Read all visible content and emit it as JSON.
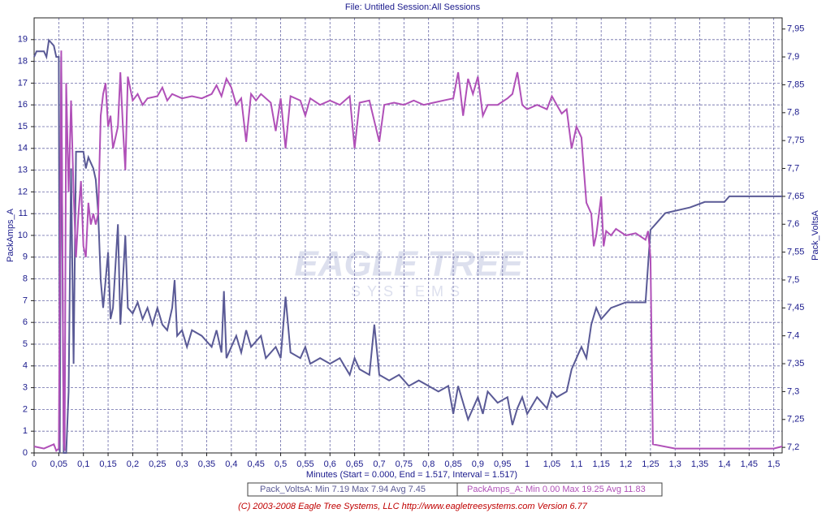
{
  "chart_data": {
    "type": "line",
    "header": "File: Untitled   Session:All Sessions",
    "xlabel": "Minutes (Start = 0.000,  End = 1.517,  Interval = 1.517)",
    "ylabel": "PackAmps_A",
    "y2label": "Pack_VoltsA",
    "footer": "(C) 2003-2008 Eagle Tree Systems, LLC     http://www.eagletreesystems.com     Version 6.77",
    "watermark": [
      "EAGLE TREE",
      "SYSTEMS"
    ],
    "grid": true,
    "xlim": [
      0,
      1.517
    ],
    "ylim": [
      0,
      20
    ],
    "y2lim": [
      7.19,
      7.97
    ],
    "xticks": [
      0,
      {
        "value": 0.05,
        "label": "0,05"
      },
      {
        "value": 0.1,
        "label": "0,1"
      },
      {
        "value": 0.15,
        "label": "0,15"
      },
      {
        "value": 0.2,
        "label": "0,2"
      },
      {
        "value": 0.25,
        "label": "0,25"
      },
      {
        "value": 0.3,
        "label": "0,3"
      },
      {
        "value": 0.35,
        "label": "0,35"
      },
      {
        "value": 0.4,
        "label": "0,4"
      },
      {
        "value": 0.45,
        "label": "0,45"
      },
      {
        "value": 0.5,
        "label": "0,5"
      },
      {
        "value": 0.55,
        "label": "0,55"
      },
      {
        "value": 0.6,
        "label": "0,6"
      },
      {
        "value": 0.65,
        "label": "0,65"
      },
      {
        "value": 0.7,
        "label": "0,7"
      },
      {
        "value": 0.75,
        "label": "0,75"
      },
      {
        "value": 0.8,
        "label": "0,8"
      },
      {
        "value": 0.85,
        "label": "0,85"
      },
      {
        "value": 0.9,
        "label": "0,9"
      },
      {
        "value": 0.95,
        "label": "0,95"
      },
      1,
      {
        "value": 1.05,
        "label": "1,05"
      },
      {
        "value": 1.1,
        "label": "1,1"
      },
      {
        "value": 1.15,
        "label": "1,15"
      },
      {
        "value": 1.2,
        "label": "1,2"
      },
      {
        "value": 1.25,
        "label": "1,25"
      },
      {
        "value": 1.3,
        "label": "1,3"
      },
      {
        "value": 1.35,
        "label": "1,35"
      },
      {
        "value": 1.4,
        "label": "1,4"
      },
      {
        "value": 1.45,
        "label": "1,45"
      },
      {
        "value": 1.5,
        "label": "1,5"
      }
    ],
    "yticks": [
      0,
      1,
      2,
      3,
      4,
      5,
      6,
      7,
      8,
      9,
      10,
      11,
      12,
      13,
      14,
      15,
      16,
      17,
      18,
      19
    ],
    "y2ticks": [
      {
        "value": 7.2,
        "label": "7,2"
      },
      {
        "value": 7.25,
        "label": "7,25"
      },
      {
        "value": 7.3,
        "label": "7,3"
      },
      {
        "value": 7.35,
        "label": "7,35"
      },
      {
        "value": 7.4,
        "label": "7,4"
      },
      {
        "value": 7.45,
        "label": "7,45"
      },
      {
        "value": 7.5,
        "label": "7,5"
      },
      {
        "value": 7.55,
        "label": "7,55"
      },
      {
        "value": 7.6,
        "label": "7,6"
      },
      {
        "value": 7.65,
        "label": "7,65"
      },
      {
        "value": 7.7,
        "label": "7,7"
      },
      {
        "value": 7.75,
        "label": "7,75"
      },
      {
        "value": 7.8,
        "label": "7,8"
      },
      {
        "value": 7.85,
        "label": "7,85"
      },
      {
        "value": 7.9,
        "label": "7,9"
      },
      {
        "value": 7.95,
        "label": "7,95"
      }
    ],
    "series": [
      {
        "name": "Pack_VoltsA",
        "legend_text": "Pack_VoltsA:  Min 7.19   Max 7.94   Avg 7.45",
        "color": "#5a5a96",
        "axis": "y2",
        "x": [
          0,
          0.005,
          0.02,
          0.025,
          0.03,
          0.04,
          0.045,
          0.05,
          0.052,
          0.055,
          0.06,
          0.065,
          0.07,
          0.075,
          0.08,
          0.085,
          0.1,
          0.105,
          0.11,
          0.12,
          0.125,
          0.13,
          0.135,
          0.14,
          0.15,
          0.155,
          0.16,
          0.17,
          0.175,
          0.18,
          0.185,
          0.19,
          0.2,
          0.21,
          0.22,
          0.23,
          0.24,
          0.25,
          0.26,
          0.27,
          0.28,
          0.285,
          0.29,
          0.3,
          0.31,
          0.32,
          0.34,
          0.36,
          0.37,
          0.38,
          0.385,
          0.39,
          0.4,
          0.41,
          0.42,
          0.43,
          0.44,
          0.46,
          0.47,
          0.49,
          0.5,
          0.51,
          0.52,
          0.54,
          0.55,
          0.56,
          0.58,
          0.6,
          0.62,
          0.64,
          0.65,
          0.66,
          0.68,
          0.69,
          0.7,
          0.72,
          0.74,
          0.76,
          0.78,
          0.8,
          0.82,
          0.84,
          0.85,
          0.86,
          0.88,
          0.9,
          0.91,
          0.92,
          0.94,
          0.96,
          0.97,
          0.98,
          0.99,
          1.0,
          1.02,
          1.04,
          1.05,
          1.06,
          1.08,
          1.09,
          1.1,
          1.11,
          1.12,
          1.13,
          1.14,
          1.15,
          1.16,
          1.17,
          1.2,
          1.24,
          1.25,
          1.26,
          1.28,
          1.33,
          1.36,
          1.4,
          1.41,
          1.517
        ],
        "values": [
          7.9,
          7.91,
          7.91,
          7.9,
          7.93,
          7.92,
          7.9,
          7.9,
          7.19,
          7.9,
          7.19,
          7.19,
          7.3,
          7.7,
          7.35,
          7.73,
          7.73,
          7.7,
          7.72,
          7.7,
          7.68,
          7.62,
          7.5,
          7.45,
          7.55,
          7.43,
          7.45,
          7.6,
          7.42,
          7.5,
          7.58,
          7.45,
          7.44,
          7.46,
          7.43,
          7.45,
          7.42,
          7.45,
          7.42,
          7.41,
          7.45,
          7.5,
          7.4,
          7.41,
          7.38,
          7.41,
          7.4,
          7.38,
          7.41,
          7.37,
          7.48,
          7.36,
          7.38,
          7.4,
          7.37,
          7.41,
          7.38,
          7.4,
          7.36,
          7.38,
          7.36,
          7.47,
          7.37,
          7.36,
          7.38,
          7.35,
          7.36,
          7.35,
          7.36,
          7.33,
          7.36,
          7.34,
          7.33,
          7.42,
          7.33,
          7.32,
          7.33,
          7.31,
          7.32,
          7.31,
          7.3,
          7.31,
          7.26,
          7.31,
          7.25,
          7.29,
          7.26,
          7.3,
          7.28,
          7.29,
          7.24,
          7.27,
          7.29,
          7.26,
          7.29,
          7.27,
          7.3,
          7.29,
          7.3,
          7.34,
          7.36,
          7.38,
          7.36,
          7.42,
          7.45,
          7.43,
          7.44,
          7.45,
          7.46,
          7.46,
          7.59,
          7.6,
          7.62,
          7.63,
          7.64,
          7.64,
          7.65,
          7.65
        ]
      },
      {
        "name": "PackAmps_A",
        "legend_text": "PackAmps_A:  Min 0.00   Max 19.25   Avg 11.83",
        "color": "#b050b8",
        "axis": "y",
        "x": [
          0,
          0.02,
          0.04,
          0.045,
          0.05,
          0.055,
          0.06,
          0.062,
          0.065,
          0.07,
          0.075,
          0.08,
          0.085,
          0.09,
          0.095,
          0.1,
          0.105,
          0.11,
          0.115,
          0.12,
          0.125,
          0.13,
          0.135,
          0.14,
          0.145,
          0.15,
          0.155,
          0.16,
          0.165,
          0.17,
          0.175,
          0.18,
          0.185,
          0.19,
          0.2,
          0.21,
          0.22,
          0.23,
          0.25,
          0.26,
          0.27,
          0.28,
          0.3,
          0.32,
          0.34,
          0.36,
          0.37,
          0.38,
          0.39,
          0.4,
          0.41,
          0.42,
          0.43,
          0.44,
          0.45,
          0.46,
          0.48,
          0.49,
          0.5,
          0.51,
          0.52,
          0.54,
          0.55,
          0.56,
          0.58,
          0.6,
          0.62,
          0.64,
          0.65,
          0.66,
          0.68,
          0.7,
          0.71,
          0.73,
          0.75,
          0.77,
          0.79,
          0.81,
          0.83,
          0.85,
          0.86,
          0.87,
          0.88,
          0.89,
          0.9,
          0.91,
          0.92,
          0.94,
          0.96,
          0.97,
          0.98,
          0.99,
          1.0,
          1.02,
          1.04,
          1.05,
          1.06,
          1.07,
          1.08,
          1.09,
          1.1,
          1.11,
          1.115,
          1.12,
          1.13,
          1.135,
          1.14,
          1.15,
          1.155,
          1.16,
          1.17,
          1.18,
          1.2,
          1.22,
          1.24,
          1.245,
          1.25,
          1.255,
          1.3,
          1.4,
          1.5,
          1.517
        ],
        "values": [
          0.3,
          0.2,
          0.4,
          0.1,
          0.2,
          18.5,
          0.5,
          0.1,
          17,
          12,
          16.2,
          12,
          9,
          11,
          12.5,
          9.5,
          9,
          11.5,
          10.5,
          11,
          10.5,
          11,
          15.5,
          16.5,
          17,
          15,
          15.5,
          14,
          14.5,
          15,
          17.5,
          15,
          13,
          17.3,
          16.2,
          16.5,
          16,
          16.3,
          16.4,
          16.8,
          16.2,
          16.5,
          16.3,
          16.4,
          16.3,
          16.5,
          16.9,
          16.4,
          17.2,
          16.8,
          16,
          16.3,
          14.3,
          16.5,
          16.2,
          16.5,
          16.1,
          14.8,
          16.3,
          14,
          16.4,
          16.2,
          15.5,
          16.3,
          16,
          16.2,
          16,
          16.4,
          14,
          16.1,
          16.2,
          14.3,
          16,
          16.1,
          16,
          16.2,
          16,
          16.1,
          16.2,
          16.3,
          17.5,
          15.5,
          17.2,
          16.5,
          17.3,
          15.5,
          16,
          16,
          16.3,
          16.5,
          17.5,
          16,
          15.8,
          16,
          15.8,
          16.4,
          16,
          15.6,
          15.8,
          14,
          15,
          14.5,
          13,
          11.5,
          11,
          9.5,
          10,
          11.8,
          9.5,
          10.2,
          10,
          10.3,
          10,
          10.1,
          9.8,
          10.2,
          9,
          0.4,
          0.2,
          0.2,
          0.2,
          0.3
        ]
      }
    ]
  }
}
